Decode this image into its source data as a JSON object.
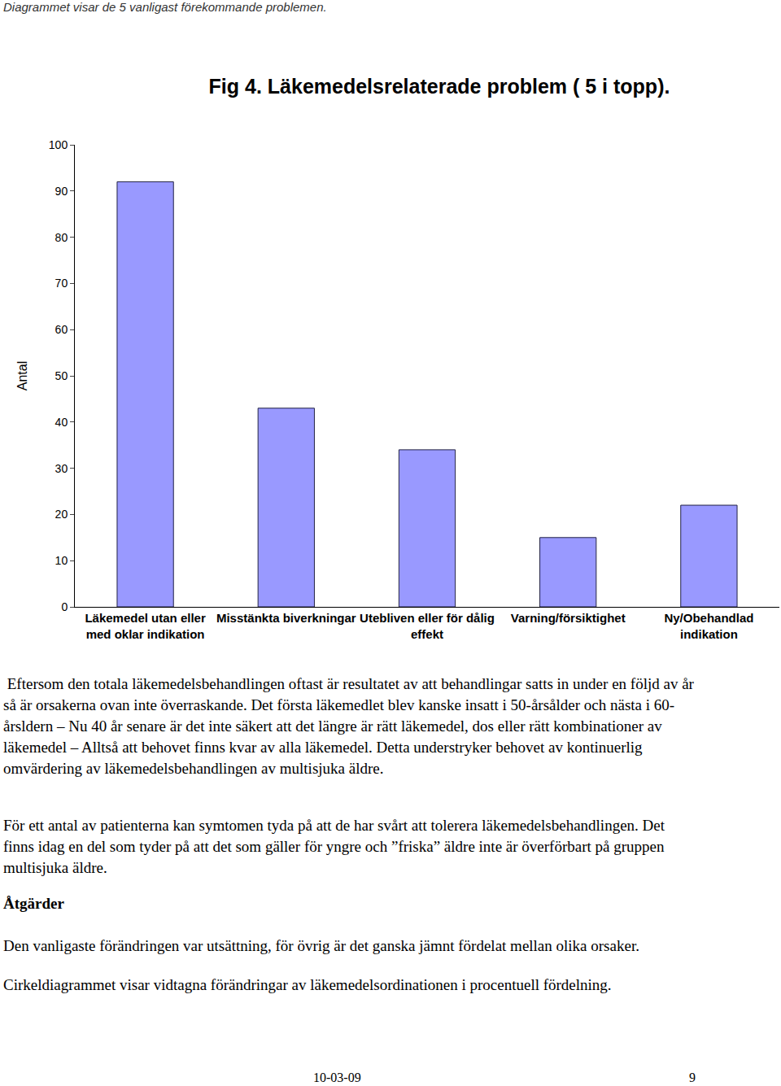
{
  "header": "Diagrammet visar de 5 vanligast förekommande problemen.",
  "figure_title": "Fig 4. Läkemedelsrelaterade problem ( 5 i topp).",
  "chart_data": {
    "type": "bar",
    "categories": [
      "Läkemedel utan eller\nmed oklar indikation",
      "Misstänkta biverkningar",
      "Utebliven eller för dålig\neffekt",
      "Varning/försiktighet",
      "Ny/Obehandlad\nindikation"
    ],
    "values": [
      92,
      43,
      34,
      15,
      22
    ],
    "color": "#9999ff",
    "y_label": "Antal",
    "ylim": [
      0,
      100
    ],
    "yticks": [
      0,
      10,
      20,
      30,
      40,
      50,
      60,
      70,
      80,
      90,
      100
    ],
    "grid": false
  },
  "body": [
    {
      "kind": "paragraph",
      "text": " Eftersom den totala läkemedelsbehandlingen oftast är resultatet av att behandlingar satts in under en följd av år så är orsakerna ovan inte överraskande. Det första läkemedlet blev kanske insatt i 50-årsålder och nästa i 60-årsldern – Nu 40 år senare är det inte säkert att det längre är rätt läkemedel, dos eller rätt kombinationer av läkemedel – Alltså att behovet finns kvar av alla läkemedel. Detta understryker behovet av kontinuerlig omvärdering av läkemedelsbehandlingen av multisjuka äldre."
    },
    {
      "kind": "paragraph",
      "text": "För ett antal av patienterna kan symtomen tyda på att de har svårt att tolerera läkemedelsbehandlingen. Det finns idag en del som tyder på att det som gäller för yngre och ”friska” äldre inte är överförbart på gruppen multisjuka äldre."
    },
    {
      "kind": "heading",
      "text": "Åtgärder"
    },
    {
      "kind": "paragraph",
      "text": "Den vanligaste förändringen var utsättning, för övrig är det ganska jämnt fördelat mellan olika orsaker."
    },
    {
      "kind": "paragraph",
      "text": "Cirkeldiagrammet visar vidtagna förändringar av läkemedelsordinationen i procentuell fördelning."
    }
  ],
  "footer": {
    "date": "10-03-09",
    "page": "9"
  }
}
